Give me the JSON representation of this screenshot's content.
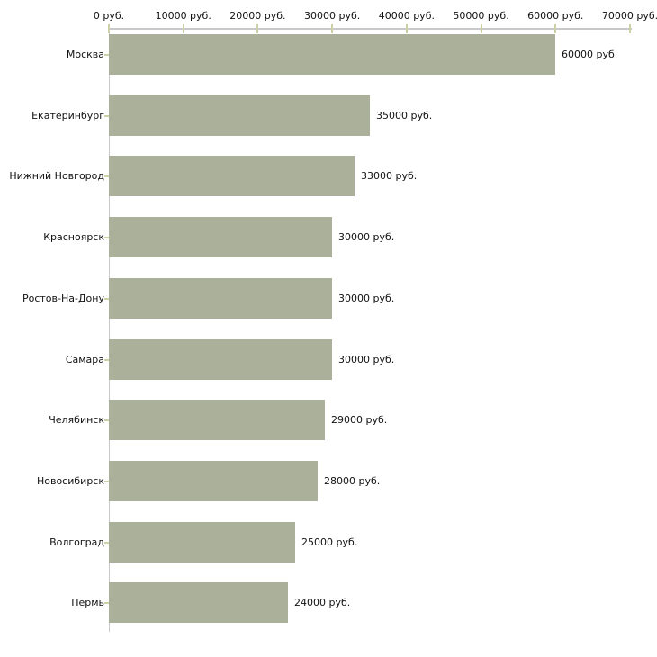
{
  "chart_data": {
    "type": "bar",
    "orientation": "horizontal",
    "title": "",
    "xlabel": "",
    "ylabel": "",
    "unit": "руб.",
    "categories": [
      "Москва",
      "Екатеринбург",
      "Нижний Новгород",
      "Красноярск",
      "Ростов-На-Дону",
      "Самара",
      "Челябинск",
      "Новосибирск",
      "Волгоград",
      "Пермь"
    ],
    "values": [
      60000,
      35000,
      33000,
      30000,
      30000,
      30000,
      29000,
      28000,
      25000,
      24000
    ],
    "value_labels": [
      "60000 руб.",
      "35000 руб.",
      "33000 руб.",
      "30000 руб.",
      "30000 руб.",
      "30000 руб.",
      "29000 руб.",
      "28000 руб.",
      "25000 руб.",
      "24000 руб."
    ],
    "xlim": [
      0,
      70000
    ],
    "x_ticks": [
      0,
      10000,
      20000,
      30000,
      40000,
      50000,
      60000,
      70000
    ],
    "x_tick_labels": [
      "0 руб.",
      "10000 руб.",
      "20000 руб.",
      "30000 руб.",
      "40000 руб.",
      "50000 руб.",
      "60000 руб.",
      "70000 руб."
    ],
    "x_axis_position": "top",
    "grid": false,
    "legend": false,
    "colors": {
      "bar": "#aab099",
      "axis_line": "#c9c9c9",
      "tick_mark": "#cdd0a4",
      "text": "#111111",
      "background": "#ffffff"
    }
  }
}
